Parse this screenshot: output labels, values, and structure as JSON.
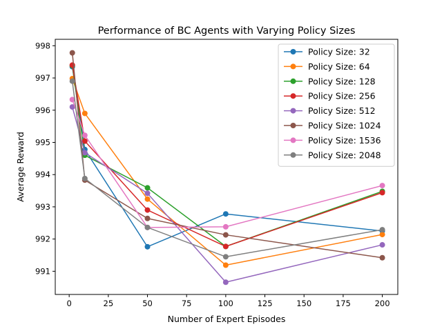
{
  "chart_data": {
    "type": "line",
    "title": "Performance of BC Agents with Varying Policy Sizes",
    "xlabel": "Number of Expert Episodes",
    "ylabel": "Average Reward",
    "xlim": [
      -8.9,
      209.9
    ],
    "ylim": [
      990.28,
      998.2
    ],
    "xticks": [
      0,
      25,
      50,
      75,
      100,
      125,
      150,
      175,
      200
    ],
    "yticks": [
      991,
      992,
      993,
      994,
      995,
      996,
      997,
      998
    ],
    "grid": false,
    "legend_position": "top-right",
    "x": [
      2,
      10,
      50,
      100,
      200
    ],
    "series": [
      {
        "name": "Policy Size: 32",
        "color": "#1f77b4",
        "values": [
          997.35,
          994.78,
          991.76,
          992.78,
          992.25
        ]
      },
      {
        "name": "Policy Size: 64",
        "color": "#ff7f0e",
        "values": [
          996.98,
          995.9,
          993.24,
          991.19,
          992.14
        ]
      },
      {
        "name": "Policy Size: 128",
        "color": "#2ca02c",
        "values": [
          997.38,
          994.6,
          993.59,
          991.77,
          993.48
        ]
      },
      {
        "name": "Policy Size: 256",
        "color": "#d62728",
        "values": [
          997.4,
          995.04,
          992.9,
          991.77,
          993.44
        ]
      },
      {
        "name": "Policy Size: 512",
        "color": "#9467bd",
        "values": [
          996.1,
          994.68,
          993.42,
          990.66,
          991.82
        ]
      },
      {
        "name": "Policy Size: 1024",
        "color": "#8c564b",
        "values": [
          997.78,
          993.83,
          992.64,
          992.13,
          991.42
        ]
      },
      {
        "name": "Policy Size: 1536",
        "color": "#e377c2",
        "values": [
          996.33,
          995.22,
          992.36,
          992.38,
          993.66
        ]
      },
      {
        "name": "Policy Size: 2048",
        "color": "#7f7f7f",
        "values": [
          996.9,
          993.88,
          992.36,
          991.45,
          992.29
        ]
      }
    ]
  }
}
